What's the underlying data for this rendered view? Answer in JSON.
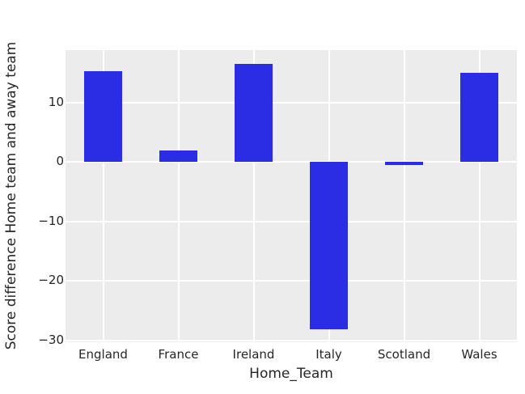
{
  "chart_data": {
    "type": "bar",
    "title": "",
    "categories": [
      "England",
      "France",
      "Ireland",
      "Italy",
      "Scotland",
      "Wales"
    ],
    "values": [
      15.3,
      2.0,
      16.5,
      -28.1,
      -0.5,
      15.0
    ],
    "xlabel": "Home_Team",
    "ylabel": "Score difference Home team and away team",
    "ylim": [
      -30.3,
      18.8
    ],
    "yticks": [
      10,
      0,
      -10,
      -20,
      -30
    ],
    "ytick_labels": [
      "10",
      "0",
      "−10",
      "−20",
      "−30"
    ],
    "grid": true,
    "legend": "none",
    "colors": {
      "bar": "#2b2de4",
      "plot_background": "#ececec",
      "grid": "#ffffff",
      "text": "#262626",
      "figure_background": "#ffffff"
    }
  }
}
